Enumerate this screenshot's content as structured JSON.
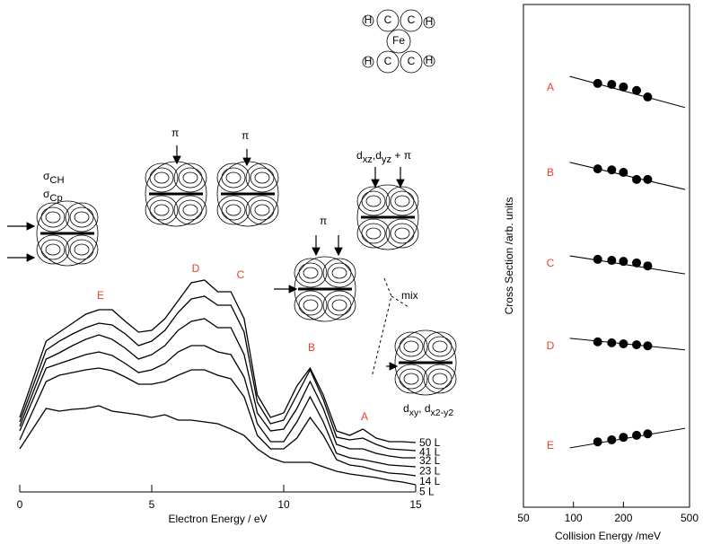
{
  "chart_data": [
    {
      "type": "line",
      "xlabel": "Electron Energy / eV",
      "x": [
        0,
        1,
        1.5,
        2,
        2.5,
        3,
        3.5,
        4,
        4.5,
        5,
        5.5,
        6,
        6.5,
        7,
        7.5,
        8,
        8.5,
        9,
        9.5,
        10,
        10.5,
        11,
        11.5,
        12,
        12.5,
        13,
        13.5,
        14,
        14.5,
        15
      ],
      "xlim": [
        0,
        15
      ],
      "xticks": [
        0,
        5,
        10,
        15
      ],
      "ylim": [
        0,
        250
      ],
      "color": "#000000",
      "series": [
        {
          "name": "50 L",
          "values": [
            83,
            168,
            178,
            188,
            198,
            203,
            203,
            190,
            178,
            180,
            193,
            213,
            233,
            236,
            223,
            223,
            193,
            108,
            83,
            88,
            118,
            138,
            108,
            68,
            63,
            70,
            60,
            56,
            56,
            55
          ]
        },
        {
          "name": "41 L",
          "values": [
            78,
            158,
            168,
            176,
            183,
            188,
            186,
            176,
            163,
            168,
            180,
            200,
            215,
            218,
            208,
            208,
            178,
            100,
            76,
            80,
            108,
            136,
            103,
            61,
            58,
            60,
            53,
            48,
            47,
            46
          ]
        },
        {
          "name": "32 L",
          "values": [
            73,
            148,
            155,
            163,
            170,
            175,
            170,
            160,
            148,
            153,
            163,
            180,
            190,
            193,
            183,
            183,
            153,
            88,
            68,
            70,
            93,
            123,
            93,
            53,
            48,
            48,
            43,
            40,
            38,
            38
          ]
        },
        {
          "name": "23 L",
          "values": [
            68,
            138,
            143,
            148,
            153,
            156,
            152,
            143,
            133,
            136,
            143,
            156,
            163,
            163,
            156,
            153,
            128,
            76,
            56,
            56,
            78,
            106,
            78,
            43,
            38,
            36,
            33,
            30,
            29,
            28
          ]
        },
        {
          "name": "14 L",
          "values": [
            58,
            123,
            130,
            133,
            136,
            138,
            135,
            128,
            120,
            120,
            123,
            130,
            136,
            136,
            130,
            126,
            106,
            63,
            48,
            48,
            60,
            83,
            63,
            36,
            30,
            28,
            24,
            21,
            20,
            18
          ]
        },
        {
          "name": "5 L",
          "values": [
            48,
            93,
            90,
            92,
            93,
            96,
            90,
            88,
            86,
            83,
            86,
            80,
            80,
            78,
            76,
            70,
            63,
            48,
            38,
            33,
            33,
            33,
            28,
            23,
            20,
            18,
            16,
            13,
            11,
            8
          ]
        }
      ],
      "annotations": [
        "E",
        "D",
        "C",
        "B",
        "A"
      ],
      "annotation_color": "#e8402a",
      "orbital_labels": {
        "sigma_ch": [
          "σ",
          "CH"
        ],
        "sigma_cp": [
          "σ",
          "Cp"
        ],
        "pi_1": "π",
        "pi_2": "π",
        "d_xz_yz": [
          "d",
          "xz",
          ",d",
          "yz",
          " + π"
        ],
        "pi_3": "π",
        "mix": "mix",
        "d_xy": [
          "d",
          "xy",
          ", d",
          "x2-y2"
        ]
      },
      "molecule_labels": [
        "H",
        "C",
        "C",
        "H",
        "Fe",
        "H",
        "C",
        "C",
        "H"
      ]
    },
    {
      "type": "scatter",
      "xlabel": "Collision Energy /meV",
      "ylabel": "Cross Section /arb. units",
      "log_x": true,
      "xlim": [
        50,
        500
      ],
      "xticks": [
        50,
        100,
        200,
        500
      ],
      "ylim": [
        0,
        100
      ],
      "color": "#000000",
      "label_color": "#e8402a",
      "x": [
        140,
        170,
        200,
        240,
        280
      ],
      "series": [
        {
          "name": "A",
          "values": [
            84.3,
            84.1,
            83.6,
            82.9,
            81.6
          ],
          "fit": {
            "x": [
              95,
              470
            ],
            "values": [
              85.7,
              79.5
            ]
          }
        },
        {
          "name": "B",
          "values": [
            67.3,
            67.1,
            66.6,
            65.2,
            65.2
          ],
          "fit": {
            "x": [
              95,
              470
            ],
            "values": [
              68.6,
              63.2
            ]
          }
        },
        {
          "name": "C",
          "values": [
            49.3,
            49.1,
            48.9,
            48.6,
            48.0
          ],
          "fit": {
            "x": [
              95,
              470
            ],
            "values": [
              50.0,
              46.4
            ]
          }
        },
        {
          "name": "D",
          "values": [
            32.9,
            32.7,
            32.5,
            32.3,
            32.1
          ],
          "fit": {
            "x": [
              95,
              470
            ],
            "values": [
              33.6,
              31.3
            ]
          }
        },
        {
          "name": "E",
          "values": [
            13.0,
            13.4,
            13.9,
            14.3,
            14.6
          ],
          "fit": {
            "x": [
              95,
              470
            ],
            "values": [
              11.8,
              15.7
            ]
          }
        }
      ]
    }
  ]
}
